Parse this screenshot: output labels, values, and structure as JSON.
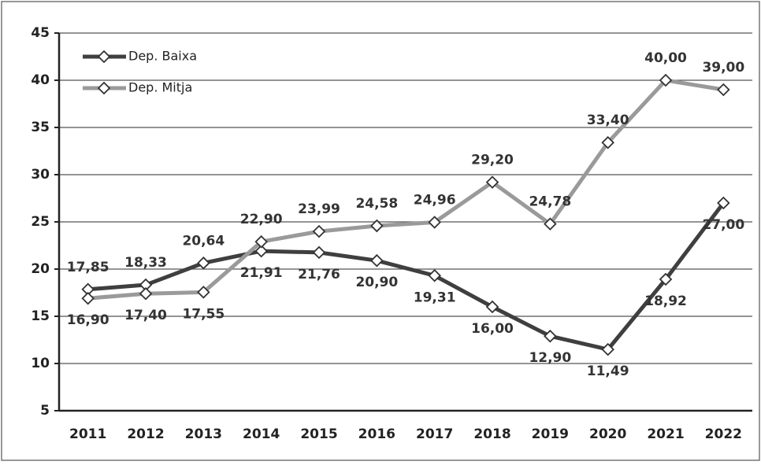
{
  "chart_data": {
    "type": "line",
    "categories": [
      "2011",
      "2012",
      "2013",
      "2014",
      "2015",
      "2016",
      "2017",
      "2018",
      "2019",
      "2020",
      "2021",
      "2022"
    ],
    "series": [
      {
        "name": "Dep. Baixa",
        "color": "#3f3f3f",
        "values": [
          17.85,
          18.33,
          20.64,
          21.91,
          21.76,
          20.9,
          19.31,
          16.0,
          12.9,
          11.49,
          18.92,
          27.0
        ],
        "value_labels": [
          "17,85",
          "18,33",
          "20,64",
          "21,91",
          "21,76",
          "20,90",
          "19,31",
          "16,00",
          "12,90",
          "11,49",
          "18,92",
          "27,00"
        ]
      },
      {
        "name": "Dep. Mitja",
        "color": "#9a9a9a",
        "values": [
          16.9,
          17.4,
          17.55,
          22.9,
          23.99,
          24.58,
          24.96,
          29.2,
          24.78,
          33.4,
          40.0,
          39.0
        ],
        "value_labels": [
          "16,90",
          "17,40",
          "17,55",
          "22,90",
          "23,99",
          "24,58",
          "24,96",
          "29,20",
          "24,78",
          "33,40",
          "40,00",
          "39,00"
        ]
      }
    ],
    "ylim": [
      5,
      45
    ],
    "yticks": [
      5,
      10,
      15,
      20,
      25,
      30,
      35,
      40,
      45
    ],
    "grid": true,
    "legend": "top-left"
  }
}
